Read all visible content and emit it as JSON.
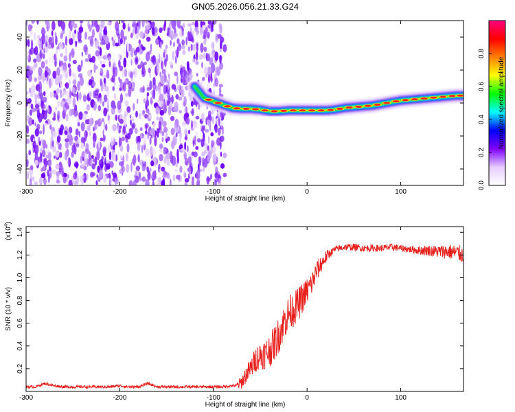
{
  "title": "GN05.2026.056.21.33.G24",
  "chart_data": [
    {
      "type": "heatmap",
      "xlabel": "Height of straight line (km)",
      "ylabel": "Frequency (Hz)",
      "xlim": [
        -300,
        167
      ],
      "ylim": [
        -50,
        50
      ],
      "xticks": [
        -300,
        -200,
        -100,
        0,
        100
      ],
      "yticks": [
        -40,
        -20,
        0,
        20,
        40
      ],
      "colorbar": {
        "label": "Normalized spectral amplitude",
        "range": [
          0,
          1
        ],
        "ticks": [
          "0.0",
          "0.2",
          "0.4",
          "0.6",
          "0.8"
        ],
        "colors": [
          "#ffffff",
          "#e6ccff",
          "#8000ff",
          "#0000ff",
          "#00ffff",
          "#00ff00",
          "#ffff00",
          "#ff8000",
          "#ff0000",
          "#ff0080"
        ]
      },
      "noise_region_x": [
        -300,
        -95
      ],
      "ridge": {
        "x": [
          -120,
          -110,
          -100,
          -90,
          -80,
          -70,
          -60,
          -50,
          -40,
          -30,
          -20,
          -10,
          0,
          10,
          20,
          30,
          40,
          50,
          60,
          70,
          80,
          90,
          100,
          110,
          120,
          130,
          140,
          150,
          160,
          167
        ],
        "y": [
          10,
          3,
          1,
          -1,
          -3,
          -3.5,
          -3.5,
          -4,
          -5,
          -5,
          -4.5,
          -4.5,
          -4.5,
          -4.5,
          -4.5,
          -4,
          -3,
          -2.5,
          -2,
          -1.5,
          -0.5,
          0.5,
          1.5,
          2,
          2.5,
          3,
          3.5,
          4,
          4.5,
          4.5
        ]
      }
    },
    {
      "type": "line",
      "xlabel": "Height of straight line (km)",
      "ylabel": "SNR (10 * v/v)",
      "yscale_label": "(x10",
      "yscale_exp": "4",
      "scale_factor": 10000,
      "xlim": [
        -300,
        167
      ],
      "ylim": [
        0,
        1.45
      ],
      "xticks": [
        -300,
        -200,
        -100,
        0,
        100
      ],
      "yticks": [
        "0.2",
        "0.4",
        "0.6",
        "0.8",
        "1.0",
        "1.2",
        "1.4"
      ],
      "series": [
        {
          "color": "#e8201c",
          "x": [
            -300,
            -290,
            -280,
            -270,
            -260,
            -250,
            -240,
            -230,
            -220,
            -210,
            -200,
            -190,
            -180,
            -170,
            -160,
            -150,
            -140,
            -130,
            -120,
            -110,
            -100,
            -90,
            -80,
            -75,
            -70,
            -65,
            -60,
            -55,
            -50,
            -45,
            -40,
            -35,
            -30,
            -25,
            -20,
            -15,
            -10,
            -5,
            0,
            5,
            10,
            15,
            20,
            25,
            30,
            35,
            40,
            50,
            60,
            70,
            80,
            90,
            100,
            110,
            120,
            130,
            140,
            150,
            160,
            167
          ],
          "y": [
            0.04,
            0.04,
            0.07,
            0.05,
            0.04,
            0.04,
            0.04,
            0.04,
            0.04,
            0.04,
            0.05,
            0.04,
            0.04,
            0.07,
            0.04,
            0.04,
            0.04,
            0.04,
            0.04,
            0.04,
            0.04,
            0.04,
            0.05,
            0.05,
            0.08,
            0.15,
            0.2,
            0.28,
            0.32,
            0.33,
            0.36,
            0.42,
            0.5,
            0.6,
            0.68,
            0.72,
            0.76,
            0.82,
            0.88,
            0.95,
            1.05,
            1.12,
            1.18,
            1.22,
            1.25,
            1.26,
            1.27,
            1.27,
            1.26,
            1.26,
            1.26,
            1.27,
            1.26,
            1.25,
            1.24,
            1.24,
            1.23,
            1.23,
            1.22,
            1.2
          ]
        }
      ]
    }
  ]
}
